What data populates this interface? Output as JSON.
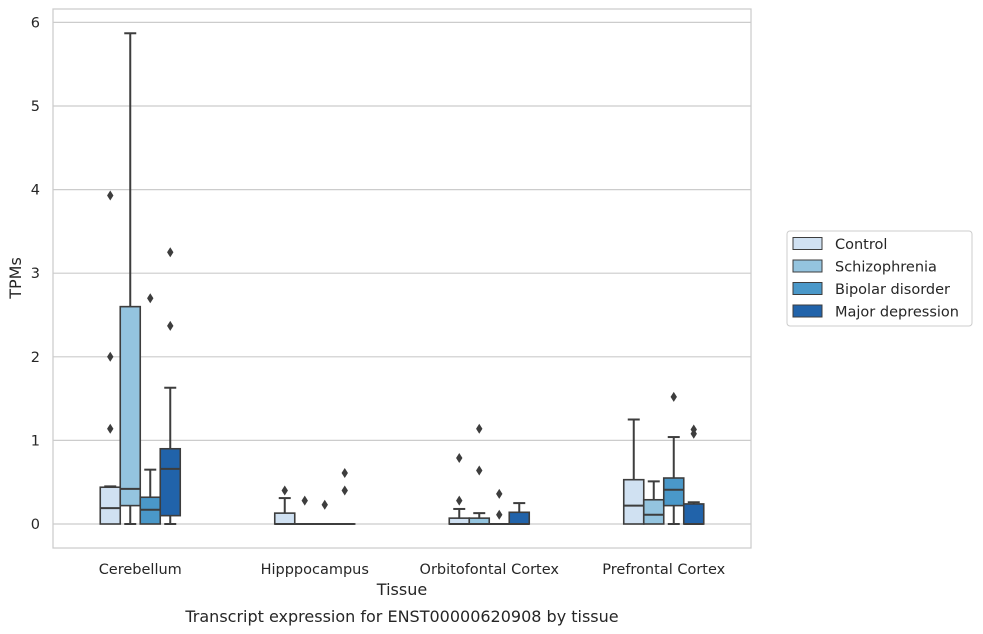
{
  "chart_data": {
    "type": "box",
    "title": "Transcript expression for ENST00000620908 by tissue",
    "xlabel": "Tissue",
    "ylabel": "TPMs",
    "ylim": [
      -0.28,
      6.15
    ],
    "yticks": [
      0,
      1,
      2,
      3,
      4,
      5,
      6
    ],
    "grid": "horizontal",
    "legend_placement": "right",
    "categories": [
      "Cerebellum",
      "Hipppocampus",
      "Orbitofontal Cortex",
      "Prefrontal Cortex"
    ],
    "series": [
      {
        "name": "Control",
        "color": "#d0e1f2",
        "boxes": [
          {
            "q1": 0.0,
            "median": 0.19,
            "q3": 0.44,
            "whisker_low": 0.0,
            "whisker_high": 0.45,
            "outliers": [
              1.14,
              2.0,
              3.93
            ]
          },
          {
            "q1": 0.0,
            "median": 0.0,
            "q3": 0.13,
            "whisker_low": 0.0,
            "whisker_high": 0.31,
            "outliers": [
              0.4
            ]
          },
          {
            "q1": 0.0,
            "median": 0.0,
            "q3": 0.07,
            "whisker_low": 0.0,
            "whisker_high": 0.18,
            "outliers": [
              0.28,
              0.79
            ]
          },
          {
            "q1": 0.0,
            "median": 0.22,
            "q3": 0.53,
            "whisker_low": 0.0,
            "whisker_high": 1.25,
            "outliers": []
          }
        ]
      },
      {
        "name": "Schizophrenia",
        "color": "#94c4df",
        "boxes": [
          {
            "q1": 0.22,
            "median": 0.42,
            "q3": 2.6,
            "whisker_low": 0.0,
            "whisker_high": 5.87,
            "outliers": []
          },
          {
            "q1": 0.0,
            "median": 0.0,
            "q3": 0.0,
            "whisker_low": 0.0,
            "whisker_high": 0.0,
            "outliers": [
              0.28
            ]
          },
          {
            "q1": 0.0,
            "median": 0.0,
            "q3": 0.07,
            "whisker_low": 0.0,
            "whisker_high": 0.13,
            "outliers": [
              0.64,
              1.14
            ]
          },
          {
            "q1": 0.0,
            "median": 0.11,
            "q3": 0.29,
            "whisker_low": 0.0,
            "whisker_high": 0.51,
            "outliers": []
          }
        ]
      },
      {
        "name": "Bipolar disorder",
        "color": "#4a98c9",
        "boxes": [
          {
            "q1": 0.0,
            "median": 0.17,
            "q3": 0.32,
            "whisker_low": 0.0,
            "whisker_high": 0.65,
            "outliers": [
              2.7
            ]
          },
          {
            "q1": 0.0,
            "median": 0.0,
            "q3": 0.0,
            "whisker_low": 0.0,
            "whisker_high": 0.0,
            "outliers": [
              0.23
            ]
          },
          {
            "q1": 0.0,
            "median": 0.0,
            "q3": 0.0,
            "whisker_low": 0.0,
            "whisker_high": 0.0,
            "outliers": [
              0.11,
              0.36
            ]
          },
          {
            "q1": 0.22,
            "median": 0.41,
            "q3": 0.55,
            "whisker_low": 0.0,
            "whisker_high": 1.04,
            "outliers": [
              1.52
            ]
          }
        ]
      },
      {
        "name": "Major depression",
        "color": "#2163aa",
        "boxes": [
          {
            "q1": 0.1,
            "median": 0.66,
            "q3": 0.9,
            "whisker_low": 0.0,
            "whisker_high": 1.63,
            "outliers": [
              2.37,
              3.25
            ]
          },
          {
            "q1": 0.0,
            "median": 0.0,
            "q3": 0.0,
            "whisker_low": 0.0,
            "whisker_high": 0.0,
            "outliers": [
              0.4,
              0.61
            ]
          },
          {
            "q1": 0.0,
            "median": 0.0,
            "q3": 0.14,
            "whisker_low": 0.0,
            "whisker_high": 0.25,
            "outliers": []
          },
          {
            "q1": 0.0,
            "median": 0.0,
            "q3": 0.24,
            "whisker_low": 0.0,
            "whisker_high": 0.26,
            "outliers": [
              1.08,
              1.13
            ]
          }
        ]
      }
    ]
  }
}
